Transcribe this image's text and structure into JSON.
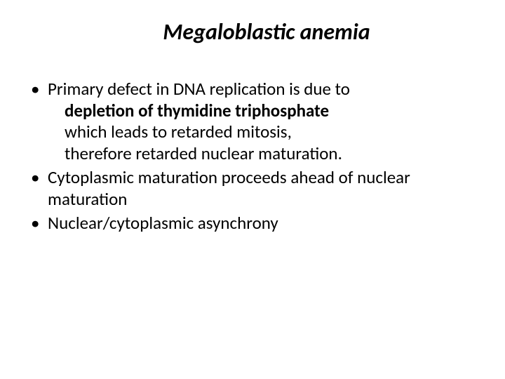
{
  "title": "Megaloblastic anemia",
  "bullets": {
    "b1_line1": "Primary defect in DNA replication is due to",
    "b1_line2": "depletion of thymidine triphosphate",
    "b1_line3": "which leads to retarded mitosis,",
    "b1_line4": "therefore retarded nuclear maturation.",
    "b2": "Cytoplasmic maturation proceeds ahead of nuclear maturation",
    "b3": " Nuclear/cytoplasmic asynchrony"
  },
  "colors": {
    "background": "#ffffff",
    "text": "#000000"
  },
  "fonts": {
    "title_size": 32,
    "body_size": 25,
    "family": "Calibri"
  }
}
